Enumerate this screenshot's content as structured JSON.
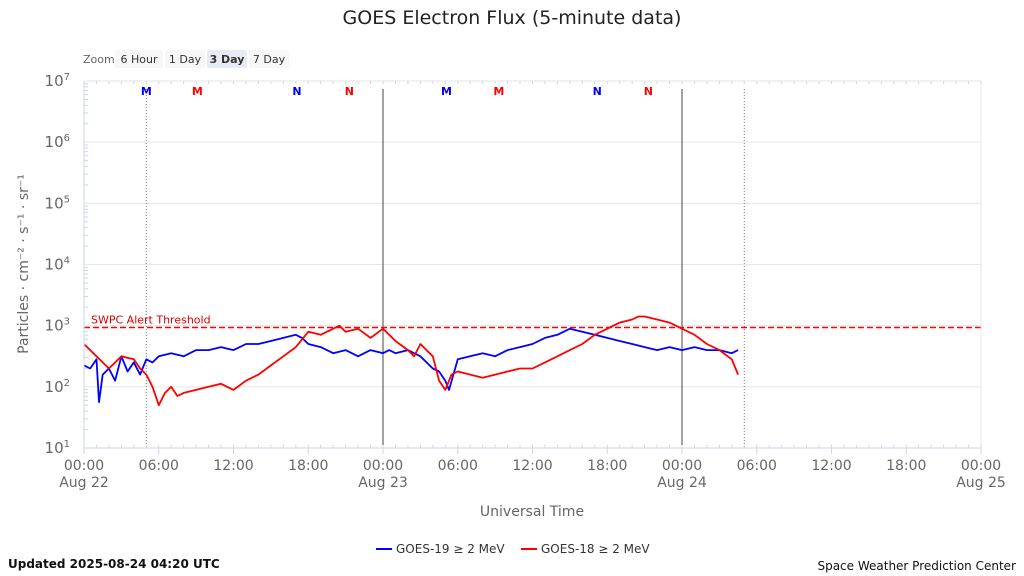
{
  "chart_data": {
    "type": "line",
    "title": "GOES Electron Flux (5-minute data)",
    "xlabel": "Universal Time",
    "ylabel": "Particles · cm⁻² · s⁻¹ · sr⁻¹",
    "y_scale": "log",
    "ylim_exponent": [
      1,
      7
    ],
    "y_ticks": [
      {
        "base": "10",
        "exp": "1"
      },
      {
        "base": "10",
        "exp": "2"
      },
      {
        "base": "10",
        "exp": "3"
      },
      {
        "base": "10",
        "exp": "4"
      },
      {
        "base": "10",
        "exp": "5"
      },
      {
        "base": "10",
        "exp": "6"
      },
      {
        "base": "10",
        "exp": "7"
      }
    ],
    "x_range_hours": [
      0,
      72
    ],
    "x_ticks": [
      {
        "h": 0,
        "time": "00:00",
        "date": "Aug 22"
      },
      {
        "h": 6,
        "time": "06:00",
        "date": ""
      },
      {
        "h": 12,
        "time": "12:00",
        "date": ""
      },
      {
        "h": 18,
        "time": "18:00",
        "date": ""
      },
      {
        "h": 24,
        "time": "00:00",
        "date": "Aug 23"
      },
      {
        "h": 30,
        "time": "06:00",
        "date": ""
      },
      {
        "h": 36,
        "time": "12:00",
        "date": ""
      },
      {
        "h": 42,
        "time": "18:00",
        "date": ""
      },
      {
        "h": 48,
        "time": "00:00",
        "date": "Aug 24"
      },
      {
        "h": 54,
        "time": "06:00",
        "date": ""
      },
      {
        "h": 60,
        "time": "12:00",
        "date": ""
      },
      {
        "h": 66,
        "time": "18:00",
        "date": ""
      },
      {
        "h": 72,
        "time": "00:00",
        "date": "Aug 25"
      }
    ],
    "grid": true,
    "day_lines_hours": [
      24,
      48
    ],
    "current_time_lines_hours": [
      5,
      53
    ],
    "mn_markers": [
      {
        "label": "M",
        "h": 5,
        "color": "#0000ff"
      },
      {
        "label": "M",
        "h": 9.1,
        "color": "#ff0000"
      },
      {
        "label": "N",
        "h": 17.1,
        "color": "#0000ff"
      },
      {
        "label": "N",
        "h": 21.3,
        "color": "#ff0000"
      },
      {
        "label": "M",
        "h": 29.1,
        "color": "#0000ff"
      },
      {
        "label": "M",
        "h": 33.3,
        "color": "#ff0000"
      },
      {
        "label": "N",
        "h": 41.2,
        "color": "#0000ff"
      },
      {
        "label": "N",
        "h": 45.3,
        "color": "#ff0000"
      }
    ],
    "threshold": {
      "label": "SWPC Alert Threshold",
      "exponent": 2.97,
      "color": "#ff0000"
    },
    "series": [
      {
        "name": "GOES-19 ≥ 2 MeV",
        "color": "#0000ff",
        "x": [
          0,
          0.5,
          1,
          1.2,
          1.5,
          2,
          2.5,
          3,
          3.5,
          4,
          4.5,
          5,
          5.5,
          6,
          7,
          8,
          9,
          10,
          11,
          12,
          13,
          14,
          15,
          16,
          17,
          17.5,
          18,
          19,
          20,
          21,
          22,
          23,
          24,
          24.5,
          25,
          26,
          27,
          28,
          28.5,
          29,
          29.3,
          30,
          31,
          32,
          33,
          34,
          35,
          36,
          37,
          38,
          39,
          40,
          41,
          42,
          43,
          44,
          45,
          46,
          47,
          48,
          49,
          50,
          51,
          52,
          52.5
        ],
        "y": [
          2.35,
          2.3,
          2.45,
          1.75,
          2.2,
          2.3,
          2.1,
          2.5,
          2.25,
          2.4,
          2.2,
          2.45,
          2.4,
          2.5,
          2.55,
          2.5,
          2.6,
          2.6,
          2.65,
          2.6,
          2.7,
          2.7,
          2.75,
          2.8,
          2.85,
          2.8,
          2.7,
          2.65,
          2.55,
          2.6,
          2.5,
          2.6,
          2.55,
          2.6,
          2.55,
          2.6,
          2.5,
          2.3,
          2.25,
          2.1,
          1.95,
          2.45,
          2.5,
          2.55,
          2.5,
          2.6,
          2.65,
          2.7,
          2.8,
          2.85,
          2.95,
          2.9,
          2.85,
          2.8,
          2.75,
          2.7,
          2.65,
          2.6,
          2.65,
          2.6,
          2.65,
          2.6,
          2.6,
          2.55,
          2.6
        ]
      },
      {
        "name": "GOES-18 ≥ 2 MeV",
        "color": "#ff0000",
        "x": [
          0,
          0.5,
          1,
          2,
          3,
          4,
          4.5,
          5,
          5.5,
          6,
          6.5,
          7,
          7.5,
          8,
          9,
          10,
          11,
          12,
          13,
          14,
          15,
          16,
          17,
          18,
          19,
          20,
          20.5,
          21,
          22,
          23,
          24,
          25,
          26,
          26.5,
          27,
          28,
          28.5,
          29,
          29.5,
          30,
          31,
          32,
          33,
          34,
          35,
          36,
          37,
          38,
          39,
          40,
          41,
          42,
          43,
          44,
          44.5,
          45,
          46,
          47,
          48,
          49,
          50,
          51,
          52,
          52.5
        ],
        "y": [
          2.7,
          2.6,
          2.5,
          2.3,
          2.5,
          2.45,
          2.3,
          2.2,
          2.0,
          1.7,
          1.9,
          2.0,
          1.85,
          1.9,
          1.95,
          2.0,
          2.05,
          1.95,
          2.1,
          2.2,
          2.35,
          2.5,
          2.65,
          2.9,
          2.85,
          2.95,
          3.0,
          2.9,
          2.95,
          2.8,
          2.95,
          2.75,
          2.6,
          2.5,
          2.7,
          2.5,
          2.1,
          1.95,
          2.2,
          2.25,
          2.2,
          2.15,
          2.2,
          2.25,
          2.3,
          2.3,
          2.4,
          2.5,
          2.6,
          2.7,
          2.85,
          2.95,
          3.05,
          3.1,
          3.15,
          3.15,
          3.1,
          3.05,
          2.95,
          2.85,
          2.7,
          2.6,
          2.45,
          2.2
        ]
      }
    ]
  },
  "zoom": {
    "label": "Zoom",
    "buttons": [
      "6 Hour",
      "1 Day",
      "3 Day",
      "7 Day"
    ],
    "active": "3 Day"
  },
  "footer": {
    "updated": "Updated 2025-08-24 04:20 UTC",
    "credit": "Space Weather Prediction Center"
  }
}
